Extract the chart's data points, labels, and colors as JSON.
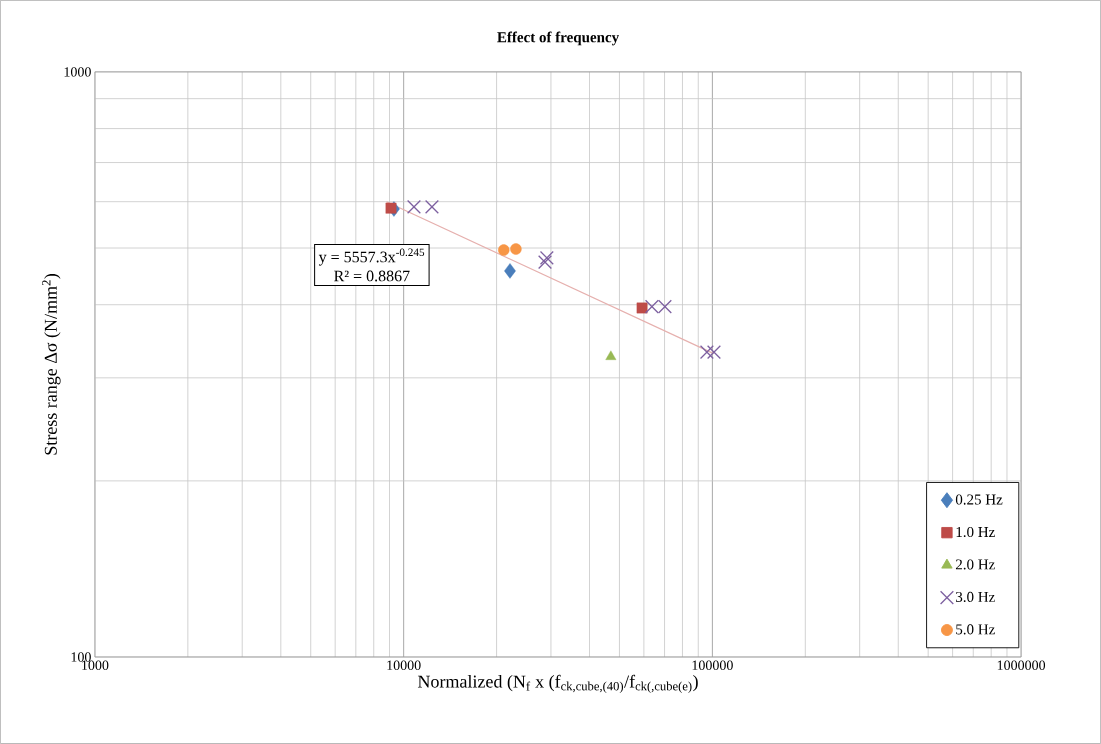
{
  "chart_data": {
    "type": "scatter",
    "title": "Effect of frequency",
    "xlabel": "Normalized (N$_{f}$ x (f$_{ck,cube,(40)}$/f$_{ck(,cube(e)}$)",
    "ylabel": "Stress range Δσ (N/mm$^{2}$)",
    "log": "xy",
    "xlim": [
      1000,
      1000000
    ],
    "ylim": [
      100,
      1000
    ],
    "xticks": [
      1000,
      10000,
      100000,
      1000000
    ],
    "yticks": [
      100,
      1000
    ],
    "grid": true,
    "legend": "bottom right",
    "annotations": [
      "y = 5557.3x$^{-0.245}$",
      "R² = 0.8867"
    ],
    "series": [
      {
        "name": "0.25 Hz",
        "color": "#4a7ebb",
        "marker": "diamond",
        "x": [
          9300,
          22100
        ],
        "values": [
          583,
          457
        ]
      },
      {
        "name": "1.0 Hz",
        "color": "#be4b48",
        "marker": "square",
        "x": [
          9100,
          59200
        ],
        "values": [
          585,
          395
        ]
      },
      {
        "name": "2.0 Hz",
        "color": "#98b954",
        "marker": "triangle",
        "x": [
          46900
        ],
        "values": [
          326
        ]
      },
      {
        "name": "3.0 Hz",
        "color": "#7d60a0",
        "marker": "cross",
        "x": [
          10800,
          12350,
          28700,
          29100,
          63700,
          70200,
          96000,
          101200
        ],
        "values": [
          588,
          588,
          473,
          481,
          397,
          397,
          332,
          332
        ]
      },
      {
        "name": "5.0 Hz",
        "color": "#f79646",
        "marker": "circle",
        "x": [
          21100,
          23100
        ],
        "values": [
          496,
          498
        ]
      },
      {
        "type": "line",
        "color": "#e6b0ae",
        "marker": "none",
        "x": [
          8800,
          101000
        ],
        "values": [
          600,
          330
        ]
      }
    ]
  }
}
